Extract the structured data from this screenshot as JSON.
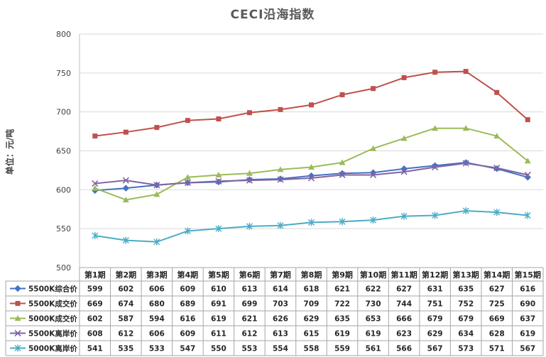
{
  "chart_data": {
    "type": "line",
    "title": "CECI沿海指数",
    "ylabel": "单位：元/吨",
    "ylim": [
      500,
      800
    ],
    "yticks": [
      500,
      550,
      600,
      650,
      700,
      750,
      800
    ],
    "grid": true,
    "legend": "data-table",
    "categories": [
      "第1期",
      "第2期",
      "第3期",
      "第4期",
      "第5期",
      "第6期",
      "第7期",
      "第8期",
      "第9期",
      "第10期",
      "第11期",
      "第12期",
      "第13期",
      "第14期",
      "第15期"
    ],
    "series": [
      {
        "name": "5500K综合价",
        "color": "#4472c4",
        "marker": "diamond",
        "values": [
          599,
          602,
          606,
          609,
          610,
          613,
          614,
          618,
          621,
          622,
          627,
          631,
          635,
          627,
          616
        ]
      },
      {
        "name": "5500K成交价",
        "color": "#c0504d",
        "marker": "square",
        "values": [
          669,
          674,
          680,
          689,
          691,
          699,
          703,
          709,
          722,
          730,
          744,
          751,
          752,
          725,
          690
        ]
      },
      {
        "name": "5000K成交价",
        "color": "#9bbb59",
        "marker": "triangle",
        "values": [
          602,
          587,
          594,
          616,
          619,
          621,
          626,
          629,
          635,
          653,
          666,
          679,
          679,
          669,
          637
        ]
      },
      {
        "name": "5500K离岸价",
        "color": "#8064a2",
        "marker": "x",
        "values": [
          608,
          612,
          606,
          609,
          611,
          612,
          613,
          615,
          619,
          619,
          623,
          629,
          634,
          628,
          619
        ]
      },
      {
        "name": "5000K离岸价",
        "color": "#4bacc6",
        "marker": "star",
        "values": [
          541,
          535,
          533,
          547,
          550,
          553,
          554,
          558,
          559,
          561,
          566,
          567,
          573,
          571,
          567
        ]
      }
    ]
  }
}
